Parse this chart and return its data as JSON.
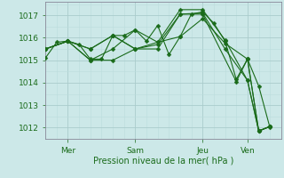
{
  "background_color": "#cce8e8",
  "grid_color_major": "#aacccc",
  "grid_color_minor": "#bbdddd",
  "line_color": "#1a6b1a",
  "xlabel": "Pression niveau de la mer( hPa )",
  "yticks": [
    1012,
    1013,
    1014,
    1015,
    1016,
    1017
  ],
  "xtick_labels": [
    "Mer",
    "Sam",
    "Jeu",
    "Ven"
  ],
  "xtick_positions": [
    1.0,
    4.0,
    7.0,
    9.0
  ],
  "xlim": [
    0.0,
    10.5
  ],
  "ylim": [
    1011.5,
    1017.6
  ],
  "lines": [
    {
      "x": [
        0.0,
        0.5,
        1.0,
        1.5,
        2.0,
        2.5,
        3.0,
        3.5,
        4.0,
        4.5,
        5.0,
        5.5,
        6.0,
        6.5,
        7.0,
        7.5,
        8.0,
        8.5,
        9.0,
        9.5,
        10.0
      ],
      "y": [
        1015.1,
        1015.8,
        1015.85,
        1015.7,
        1015.05,
        1015.05,
        1016.1,
        1016.1,
        1016.35,
        1015.85,
        1016.55,
        1015.25,
        1016.05,
        1017.05,
        1017.15,
        1016.65,
        1015.85,
        1014.15,
        1015.05,
        1013.85,
        1012.0
      ]
    },
    {
      "x": [
        0.0,
        1.0,
        2.0,
        3.0,
        4.0,
        5.0,
        6.0,
        7.0,
        8.0,
        9.0,
        9.5,
        10.0
      ],
      "y": [
        1015.5,
        1015.85,
        1015.5,
        1016.1,
        1015.5,
        1015.7,
        1017.05,
        1017.1,
        1015.5,
        1014.1,
        1011.85,
        1012.05
      ]
    },
    {
      "x": [
        0.0,
        1.0,
        2.0,
        3.0,
        4.0,
        5.0,
        6.0,
        7.0,
        8.0,
        9.0,
        9.5,
        10.0
      ],
      "y": [
        1015.5,
        1015.85,
        1015.5,
        1016.1,
        1015.5,
        1015.8,
        1017.25,
        1017.25,
        1015.9,
        1014.1,
        1011.85,
        1012.05
      ]
    },
    {
      "x": [
        0.0,
        1.0,
        2.0,
        3.0,
        4.0,
        5.0,
        6.0,
        7.0,
        8.5,
        9.0,
        9.5,
        10.0
      ],
      "y": [
        1015.5,
        1015.85,
        1015.0,
        1015.0,
        1015.5,
        1015.5,
        1017.05,
        1017.05,
        1014.05,
        1015.05,
        1011.85,
        1012.05
      ]
    },
    {
      "x": [
        0.0,
        1.0,
        2.0,
        3.0,
        4.0,
        5.0,
        6.0,
        7.0,
        8.0,
        9.0,
        9.5,
        10.0
      ],
      "y": [
        1015.5,
        1015.85,
        1015.0,
        1015.5,
        1016.35,
        1015.8,
        1016.05,
        1016.85,
        1015.75,
        1015.05,
        1011.85,
        1012.05
      ]
    }
  ]
}
